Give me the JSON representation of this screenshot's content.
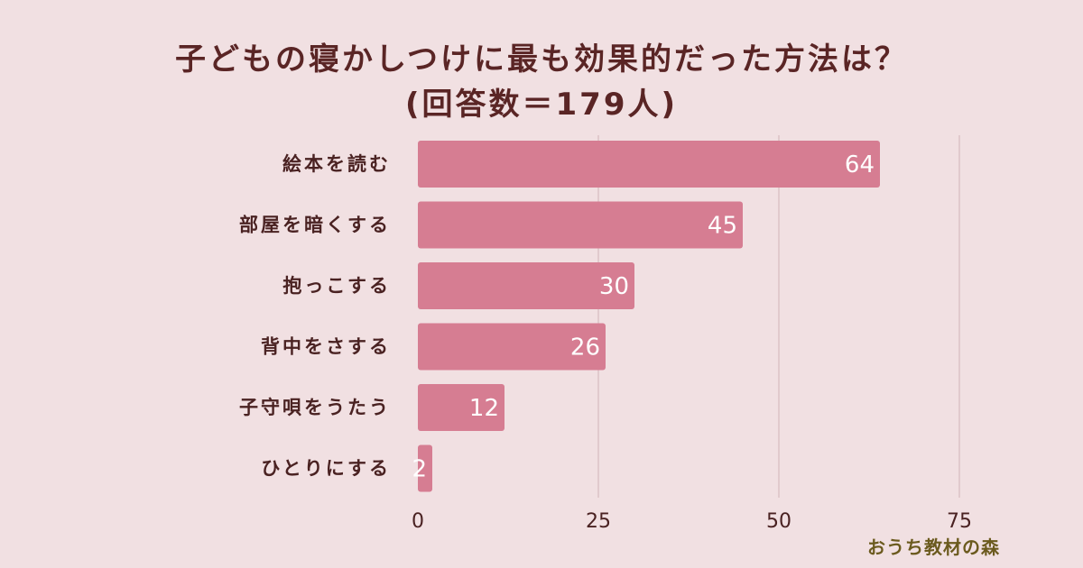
{
  "chart_data": {
    "type": "bar",
    "orientation": "horizontal",
    "title": "子どもの寝かしつけに最も効果的だった方法は？",
    "subtitle": "(回答数＝179人)",
    "categories": [
      "絵本を読む",
      "部屋を暗くする",
      "抱っこする",
      "背中をさする",
      "子守唄をうたう",
      "ひとりにする"
    ],
    "values": [
      64,
      45,
      30,
      26,
      12,
      2
    ],
    "xlim": [
      0,
      75
    ],
    "xticks": [
      0,
      25,
      50,
      75
    ],
    "grid": true,
    "bar_color": "#d67d92",
    "xlabel": "",
    "ylabel": ""
  },
  "watermark": "おうち教材の森"
}
